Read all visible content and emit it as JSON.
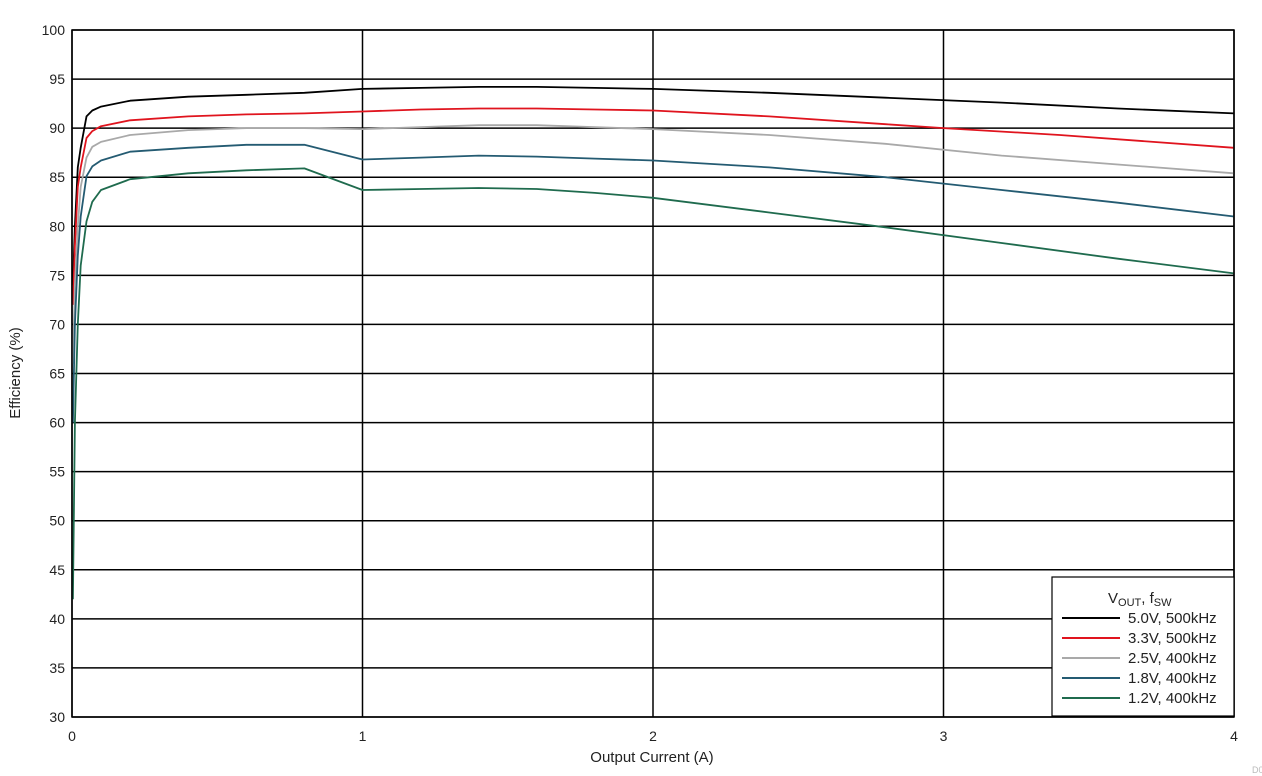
{
  "chart_data": {
    "type": "line",
    "title": "",
    "xlabel": "Output Current (A)",
    "ylabel": "Efficiency (%)",
    "xlim": [
      0,
      4
    ],
    "ylim": [
      30,
      100
    ],
    "xticks": [
      0,
      1,
      2,
      3,
      4
    ],
    "yticks": [
      30,
      35,
      40,
      45,
      50,
      55,
      60,
      65,
      70,
      75,
      80,
      85,
      90,
      95,
      100
    ],
    "grid": true,
    "legend": {
      "placement": "bottom-right",
      "title_main_1": "V",
      "title_sub_1": "OUT",
      "title_main_2": ", f",
      "title_sub_2": "SW"
    },
    "figure_code": "D0",
    "series": [
      {
        "name": "5.0V, 500kHz",
        "color": "#000000",
        "x": [
          0.003,
          0.01,
          0.02,
          0.03,
          0.05,
          0.07,
          0.1,
          0.2,
          0.4,
          0.6,
          0.8,
          1.0,
          1.2,
          1.4,
          1.6,
          1.8,
          2.0,
          2.4,
          2.8,
          3.2,
          3.6,
          4.0
        ],
        "y": [
          74,
          80,
          86,
          88,
          91.2,
          91.8,
          92.2,
          92.8,
          93.2,
          93.4,
          93.6,
          94.0,
          94.1,
          94.2,
          94.2,
          94.1,
          94.0,
          93.6,
          93.1,
          92.6,
          92.0,
          91.5
        ]
      },
      {
        "name": "3.3V, 500kHz",
        "color": "#e0141e",
        "x": [
          0.003,
          0.01,
          0.02,
          0.03,
          0.05,
          0.07,
          0.1,
          0.2,
          0.4,
          0.6,
          0.8,
          1.0,
          1.2,
          1.4,
          1.6,
          1.8,
          2.0,
          2.4,
          2.8,
          3.0,
          3.4,
          4.0
        ],
        "y": [
          72,
          78,
          84,
          86,
          89,
          89.7,
          90.2,
          90.8,
          91.2,
          91.4,
          91.5,
          91.7,
          91.9,
          92.0,
          92.0,
          91.9,
          91.8,
          91.2,
          90.4,
          90.0,
          89.3,
          88.0
        ]
      },
      {
        "name": "2.5V, 400kHz",
        "color": "#a9a9a9",
        "x": [
          0.003,
          0.01,
          0.02,
          0.03,
          0.05,
          0.07,
          0.1,
          0.2,
          0.4,
          0.6,
          0.8,
          1.0,
          1.2,
          1.4,
          1.6,
          1.8,
          2.0,
          2.4,
          2.8,
          3.2,
          3.6,
          4.0
        ],
        "y": [
          66,
          74,
          80,
          84,
          87,
          88.1,
          88.6,
          89.3,
          89.8,
          90.0,
          90.0,
          89.9,
          90.1,
          90.3,
          90.3,
          90.1,
          89.9,
          89.3,
          88.4,
          87.2,
          86.3,
          85.4
        ]
      },
      {
        "name": "1.8V, 400kHz",
        "color": "#245b72",
        "x": [
          0.003,
          0.01,
          0.02,
          0.03,
          0.05,
          0.07,
          0.1,
          0.2,
          0.4,
          0.6,
          0.8,
          1.0,
          1.2,
          1.4,
          1.6,
          1.8,
          2.0,
          2.4,
          2.8,
          3.2,
          3.6,
          4.0
        ],
        "y": [
          60,
          70,
          77,
          81,
          85.1,
          86.1,
          86.7,
          87.6,
          88.0,
          88.3,
          88.3,
          86.8,
          87.0,
          87.2,
          87.1,
          86.9,
          86.7,
          86.0,
          85.0,
          83.7,
          82.4,
          81.0
        ]
      },
      {
        "name": "1.2V, 400kHz",
        "color": "#1f6b4e",
        "x": [
          0.003,
          0.01,
          0.02,
          0.03,
          0.05,
          0.07,
          0.1,
          0.2,
          0.4,
          0.6,
          0.8,
          1.0,
          1.2,
          1.4,
          1.6,
          1.8,
          2.0,
          2.4,
          2.8,
          3.2,
          3.6,
          4.0
        ],
        "y": [
          42,
          60,
          70,
          76,
          80.5,
          82.5,
          83.7,
          84.8,
          85.4,
          85.7,
          85.9,
          83.7,
          83.8,
          83.9,
          83.8,
          83.4,
          82.9,
          81.4,
          79.9,
          78.3,
          76.7,
          75.2
        ]
      }
    ]
  }
}
